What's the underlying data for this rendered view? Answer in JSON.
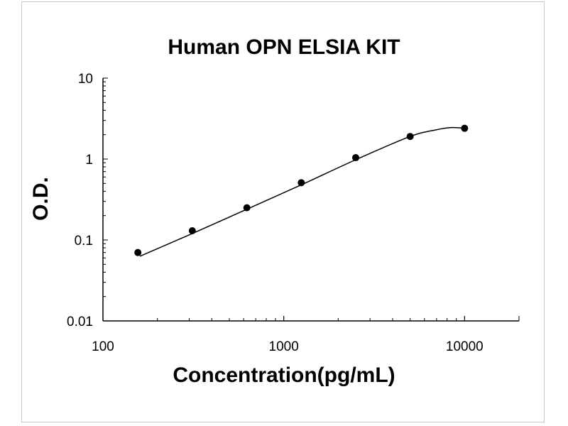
{
  "chart_data": {
    "type": "scatter",
    "title": "Human OPN ELSIA KIT",
    "xlabel": "Concentration(pg/mL)",
    "ylabel": "O.D.",
    "x_scale": "log",
    "y_scale": "log",
    "xlim": [
      100,
      20000
    ],
    "ylim": [
      0.01,
      10
    ],
    "x_ticks": [
      {
        "value": 100,
        "label": "100"
      },
      {
        "value": 1000,
        "label": "1000"
      },
      {
        "value": 10000,
        "label": "10000"
      }
    ],
    "y_ticks": [
      {
        "value": 10,
        "label": "10"
      },
      {
        "value": 1,
        "label": "1"
      },
      {
        "value": 0.1,
        "label": "0.1"
      },
      {
        "value": 0.01,
        "label": "0.01"
      }
    ],
    "grid": false,
    "legend": false,
    "series": [
      {
        "points": [
          {
            "x": 156,
            "y": 0.07
          },
          {
            "x": 312,
            "y": 0.13
          },
          {
            "x": 625,
            "y": 0.25
          },
          {
            "x": 1250,
            "y": 0.51
          },
          {
            "x": 2500,
            "y": 1.04
          },
          {
            "x": 5000,
            "y": 1.9
          },
          {
            "x": 10000,
            "y": 2.4
          }
        ],
        "fit_curve": {
          "x": [
            160,
            312,
            625,
            1250,
            2500,
            5000,
            7000,
            8500,
            10000
          ],
          "y": [
            0.063,
            0.12,
            0.24,
            0.48,
            0.98,
            1.9,
            2.3,
            2.45,
            2.4
          ]
        },
        "color": "#000000"
      }
    ]
  }
}
